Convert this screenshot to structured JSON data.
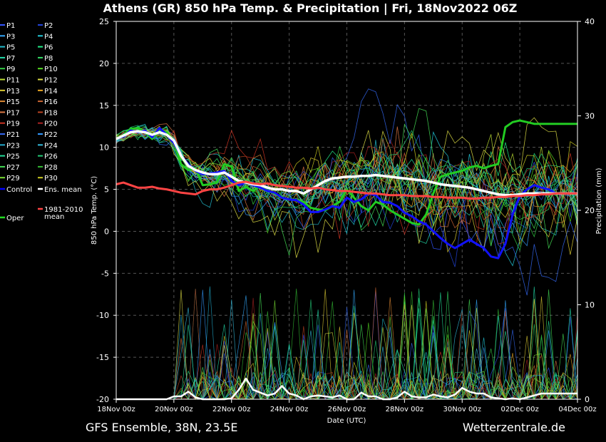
{
  "chart_data": {
    "type": "line",
    "title": "Athens  (GR)  850 hPa Temp. & Precipitation | Fri, 18Nov2022 06Z",
    "xlabel": "Date (UTC)",
    "ylabel_left": "850 hPa Temp. (°C)",
    "ylabel_right": "Precipitation (mm)",
    "footer_left": "GFS Ensemble, 38N, 23.5E",
    "footer_right": "Wetterzentrale.de",
    "x_ticks": [
      "18Nov 00z",
      "20Nov 00z",
      "22Nov 00z",
      "24Nov 00z",
      "26Nov 00z",
      "28Nov 00z",
      "30Nov 00z",
      "02Dec 00z",
      "04Dec 00z"
    ],
    "x_range_hours": [
      0,
      384
    ],
    "y_left_ticks": [
      "25",
      "20",
      "15",
      "10",
      "5",
      "0",
      "-5",
      "-10",
      "-15",
      "-20"
    ],
    "y_left_range": [
      -20,
      25
    ],
    "y_right_ticks": [
      "40",
      "30",
      "20",
      "10",
      "0"
    ],
    "y_right_range": [
      0,
      40
    ],
    "grid": true,
    "legend_position": "left",
    "legend": [
      {
        "label": "P1",
        "color": "#3355ff"
      },
      {
        "label": "P2",
        "color": "#2244dd"
      },
      {
        "label": "P3",
        "color": "#33aaff"
      },
      {
        "label": "P4",
        "color": "#22ccdd"
      },
      {
        "label": "P5",
        "color": "#22bbcc"
      },
      {
        "label": "P6",
        "color": "#22ee88"
      },
      {
        "label": "P7",
        "color": "#22ddaa"
      },
      {
        "label": "P8",
        "color": "#33dd66"
      },
      {
        "label": "P9",
        "color": "#33cc44"
      },
      {
        "label": "P10",
        "color": "#55dd22"
      },
      {
        "label": "P11",
        "color": "#bbdd33"
      },
      {
        "label": "P12",
        "color": "#dddd44"
      },
      {
        "label": "P13",
        "color": "#ddcc33"
      },
      {
        "label": "P14",
        "color": "#eeaa22"
      },
      {
        "label": "P15",
        "color": "#dd8833"
      },
      {
        "label": "P16",
        "color": "#cc6633"
      },
      {
        "label": "P17",
        "color": "#dd7744"
      },
      {
        "label": "P18",
        "color": "#bb4422"
      },
      {
        "label": "P19",
        "color": "#cc3322"
      },
      {
        "label": "P20",
        "color": "#aa2222"
      },
      {
        "label": "P21",
        "color": "#3366ee"
      },
      {
        "label": "P22",
        "color": "#3399ff"
      },
      {
        "label": "P23",
        "color": "#22aacc"
      },
      {
        "label": "P24",
        "color": "#33bbdd"
      },
      {
        "label": "P25",
        "color": "#22dd99"
      },
      {
        "label": "P26",
        "color": "#22cc77"
      },
      {
        "label": "P27",
        "color": "#44dd55"
      },
      {
        "label": "P28",
        "color": "#33bb33"
      },
      {
        "label": "P29",
        "color": "#77dd33"
      },
      {
        "label": "P30",
        "color": "#cccc22"
      },
      {
        "label": "Control",
        "color": "#0000ff"
      },
      {
        "label": "Ens. mean",
        "color": "#ffffff"
      },
      {
        "label": "Oper",
        "color": "#22dd22"
      },
      {
        "label": "1981-2010\nmean",
        "color": "#ff4444"
      }
    ],
    "series": [
      {
        "name": "Oper",
        "color": "#22cc22",
        "x": [
          0,
          6,
          12,
          18,
          24,
          30,
          36,
          42,
          48,
          54,
          60,
          66,
          72,
          78,
          84,
          90,
          96,
          102,
          108,
          114,
          120,
          126,
          132,
          138,
          144,
          150,
          156,
          162,
          168,
          174,
          180,
          186,
          192,
          198,
          204,
          210,
          216,
          222,
          228,
          234,
          240,
          246,
          252,
          258,
          264,
          270,
          276,
          282,
          288,
          294,
          300,
          306,
          312,
          318,
          324,
          330,
          336,
          342,
          348,
          354,
          360,
          366,
          372,
          378,
          384
        ],
        "y": [
          11,
          11.5,
          12.2,
          12.3,
          11.8,
          11,
          12,
          11.8,
          10.5,
          8,
          7.3,
          7.5,
          5.5,
          5.6,
          5.8,
          8,
          7.7,
          4.8,
          5.3,
          4.8,
          5.5,
          4.8,
          4.5,
          4,
          3.8,
          3.7,
          3.5,
          2.8,
          2.6,
          2.5,
          3,
          3.5,
          5,
          4,
          3,
          2.5,
          3.5,
          3.2,
          2.5,
          2,
          1.5,
          1,
          0.8,
          2,
          4.5,
          6.5,
          6.8,
          7,
          7.2,
          7.6,
          7.8,
          7.5,
          7.8,
          8,
          12.4,
          13,
          13.2,
          13,
          12.8,
          12.8,
          12.8,
          12.8,
          12.8,
          12.8,
          12.8
        ]
      },
      {
        "name": "Control",
        "color": "#1111ff",
        "x": [
          0,
          6,
          12,
          18,
          24,
          30,
          36,
          42,
          48,
          54,
          60,
          66,
          72,
          78,
          84,
          90,
          96,
          102,
          108,
          114,
          120,
          126,
          132,
          138,
          144,
          150,
          156,
          162,
          168,
          174,
          180,
          186,
          192,
          198,
          204,
          210,
          216,
          222,
          228,
          234,
          240,
          246,
          252,
          258,
          264,
          270,
          276,
          282,
          288,
          294,
          300,
          306,
          312,
          318,
          324,
          330,
          336,
          342,
          348,
          354,
          360,
          366,
          372,
          378,
          384
        ],
        "y": [
          11,
          11.3,
          12,
          11.8,
          12,
          11.2,
          12.3,
          11.5,
          10.5,
          9,
          8,
          7.2,
          6.8,
          6.9,
          7,
          7.2,
          6,
          5.5,
          5.8,
          5.5,
          5.2,
          4.8,
          4.6,
          4,
          3.8,
          3.7,
          3.2,
          2.3,
          2.3,
          2.6,
          3,
          2.8,
          4,
          3.5,
          3.8,
          4.5,
          4.3,
          3.5,
          3.4,
          3,
          2.2,
          1.8,
          1.2,
          0.8,
          0,
          -0.8,
          -1.5,
          -2,
          -1.5,
          -1,
          -1.5,
          -2,
          -3,
          -3.2,
          -1.5,
          2,
          4.2,
          5,
          5.5,
          5.2,
          5,
          4.5,
          4.5,
          4.5,
          4.5
        ]
      },
      {
        "name": "Ens. mean",
        "color": "#ffffff",
        "x": [
          0,
          6,
          12,
          18,
          24,
          30,
          36,
          42,
          48,
          54,
          60,
          66,
          72,
          78,
          84,
          90,
          96,
          102,
          108,
          114,
          120,
          126,
          132,
          138,
          144,
          150,
          156,
          162,
          168,
          174,
          180,
          186,
          192,
          198,
          204,
          210,
          216,
          222,
          228,
          234,
          240,
          246,
          252,
          258,
          264,
          270,
          276,
          282,
          288,
          294,
          300,
          306,
          312,
          318,
          324,
          330,
          336,
          342,
          348,
          354,
          360,
          366,
          372,
          378,
          384
        ],
        "y": [
          11,
          11.4,
          11.8,
          11.9,
          11.8,
          11.5,
          11.8,
          11.5,
          10.8,
          9,
          7.8,
          7.3,
          7,
          6.8,
          6.8,
          7,
          6.5,
          6,
          5.8,
          5.6,
          5.5,
          5.2,
          5,
          5,
          4.8,
          4.8,
          4.5,
          5,
          5.5,
          6,
          6.3,
          6.4,
          6.5,
          6.5,
          6.6,
          6.6,
          6.7,
          6.6,
          6.5,
          6.4,
          6.3,
          6.2,
          6.1,
          6,
          5.8,
          5.6,
          5.5,
          5.4,
          5.3,
          5.2,
          5,
          4.8,
          4.6,
          4.4,
          4.3,
          4.3,
          4.4,
          4.5,
          4.5,
          4.5,
          4.5,
          4.5,
          4.5,
          4.5,
          4.5
        ]
      },
      {
        "name": "1981-2010 mean",
        "color": "#ff4444",
        "x": [
          0,
          6,
          12,
          18,
          24,
          30,
          36,
          42,
          48,
          54,
          60,
          66,
          72,
          78,
          84,
          90,
          96,
          102,
          108,
          114,
          120,
          126,
          132,
          138,
          144,
          150,
          156,
          162,
          168,
          174,
          180,
          186,
          192,
          198,
          204,
          210,
          216,
          222,
          228,
          234,
          240,
          246,
          252,
          258,
          264,
          270,
          276,
          282,
          288,
          294,
          300,
          306,
          312,
          318,
          324,
          330,
          336,
          342,
          348,
          354,
          360,
          366,
          372,
          378,
          384
        ],
        "y": [
          5.6,
          5.8,
          5.5,
          5.2,
          5.2,
          5.3,
          5.1,
          5,
          4.8,
          4.6,
          4.5,
          4.4,
          4.8,
          5,
          5,
          5.2,
          5.5,
          5.8,
          5.9,
          5.7,
          5.6,
          5.7,
          5.5,
          5.4,
          5.3,
          5.2,
          5.2,
          5.1,
          5.2,
          5,
          4.9,
          4.8,
          4.8,
          4.7,
          4.6,
          4.5,
          4.5,
          4.4,
          4.3,
          4.3,
          4.3,
          4.2,
          4.2,
          4.2,
          4.1,
          4.1,
          4,
          4,
          4,
          3.9,
          3.9,
          4,
          4,
          4.1,
          4.1,
          4.2,
          4.2,
          4.3,
          4.3,
          4.4,
          4.4,
          4.5,
          4.5,
          4.5,
          4.5
        ]
      },
      {
        "name": "Ens. mean precipitation (mm)",
        "color": "#ffffff",
        "x": [
          0,
          6,
          12,
          18,
          24,
          30,
          36,
          42,
          48,
          54,
          60,
          66,
          72,
          78,
          84,
          90,
          96,
          102,
          108,
          114,
          120,
          126,
          132,
          138,
          144,
          150,
          156,
          162,
          168,
          174,
          180,
          186,
          192,
          198,
          204,
          210,
          216,
          222,
          228,
          234,
          240,
          246,
          252,
          258,
          264,
          270,
          276,
          282,
          288,
          294,
          300,
          306,
          312,
          318,
          324,
          330,
          336,
          342,
          348,
          354,
          360,
          366,
          372,
          378,
          384
        ],
        "y": [
          0,
          0,
          0,
          0,
          0,
          0,
          0,
          0,
          0.3,
          0.3,
          0.8,
          0.2,
          0,
          0,
          0,
          0,
          0.1,
          1,
          2.2,
          1,
          0.7,
          0.4,
          0.6,
          1.4,
          0.6,
          0.4,
          0,
          0.3,
          0.4,
          0.3,
          0.2,
          0.4,
          0,
          0,
          0.7,
          0.3,
          0.3,
          0,
          0,
          0.2,
          0.8,
          0.3,
          0.2,
          0.2,
          0.5,
          0.3,
          0.2,
          0.5,
          1.2,
          0.8,
          0.6,
          0.6,
          0.2,
          0.1,
          0,
          0.1,
          0,
          0.2,
          0.4,
          0.6,
          0.6,
          0.6,
          0.6,
          0.6,
          0.6
        ]
      }
    ]
  }
}
